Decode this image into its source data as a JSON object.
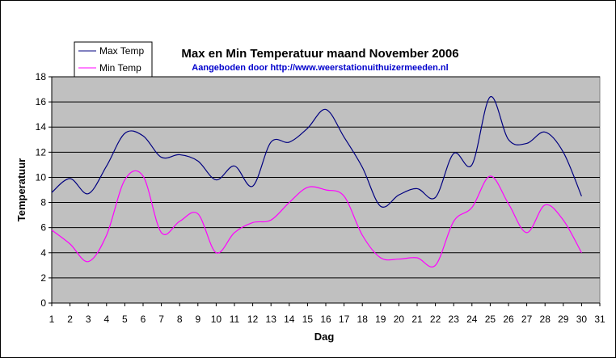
{
  "chart_data": {
    "type": "line",
    "title": "Max en Min Temperatuur maand November 2006",
    "subtitle": "Aangeboden door http://www.weerstationuithuizermeeden.nl",
    "xlabel": "Dag",
    "ylabel": "Temperatuur",
    "xlim": [
      1,
      31
    ],
    "ylim": [
      0,
      18
    ],
    "xticks": [
      1,
      2,
      3,
      4,
      5,
      6,
      7,
      8,
      9,
      10,
      11,
      12,
      13,
      14,
      15,
      16,
      17,
      18,
      19,
      20,
      21,
      22,
      23,
      24,
      25,
      26,
      27,
      28,
      29,
      30,
      31
    ],
    "yticks": [
      0,
      2,
      4,
      6,
      8,
      10,
      12,
      14,
      16,
      18
    ],
    "grid": "horizontal",
    "plot_background": "#c0c0c0",
    "legend_position": "top-left",
    "x": [
      1,
      2,
      3,
      4,
      5,
      6,
      7,
      8,
      9,
      10,
      11,
      12,
      13,
      14,
      15,
      16,
      17,
      18,
      19,
      20,
      21,
      22,
      23,
      24,
      25,
      26,
      27,
      28,
      29,
      30
    ],
    "series": [
      {
        "name": "Max Temp",
        "color": "#000080",
        "values": [
          8.8,
          9.9,
          8.7,
          10.9,
          13.5,
          13.3,
          11.6,
          11.8,
          11.3,
          9.8,
          10.9,
          9.3,
          12.8,
          12.8,
          13.9,
          15.4,
          13.2,
          10.8,
          7.7,
          8.6,
          9.1,
          8.4,
          11.9,
          11.0,
          16.4,
          13.0,
          12.7,
          13.6,
          12.0,
          8.5
        ]
      },
      {
        "name": "Min Temp",
        "color": "#ff00ff",
        "values": [
          5.8,
          4.7,
          3.3,
          5.4,
          9.8,
          10.1,
          5.6,
          6.5,
          7.1,
          4.0,
          5.6,
          6.4,
          6.6,
          8.0,
          9.2,
          9.0,
          8.5,
          5.4,
          3.6,
          3.5,
          3.6,
          3.0,
          6.5,
          7.6,
          10.1,
          7.9,
          5.6,
          7.8,
          6.6,
          4.0
        ]
      }
    ]
  }
}
